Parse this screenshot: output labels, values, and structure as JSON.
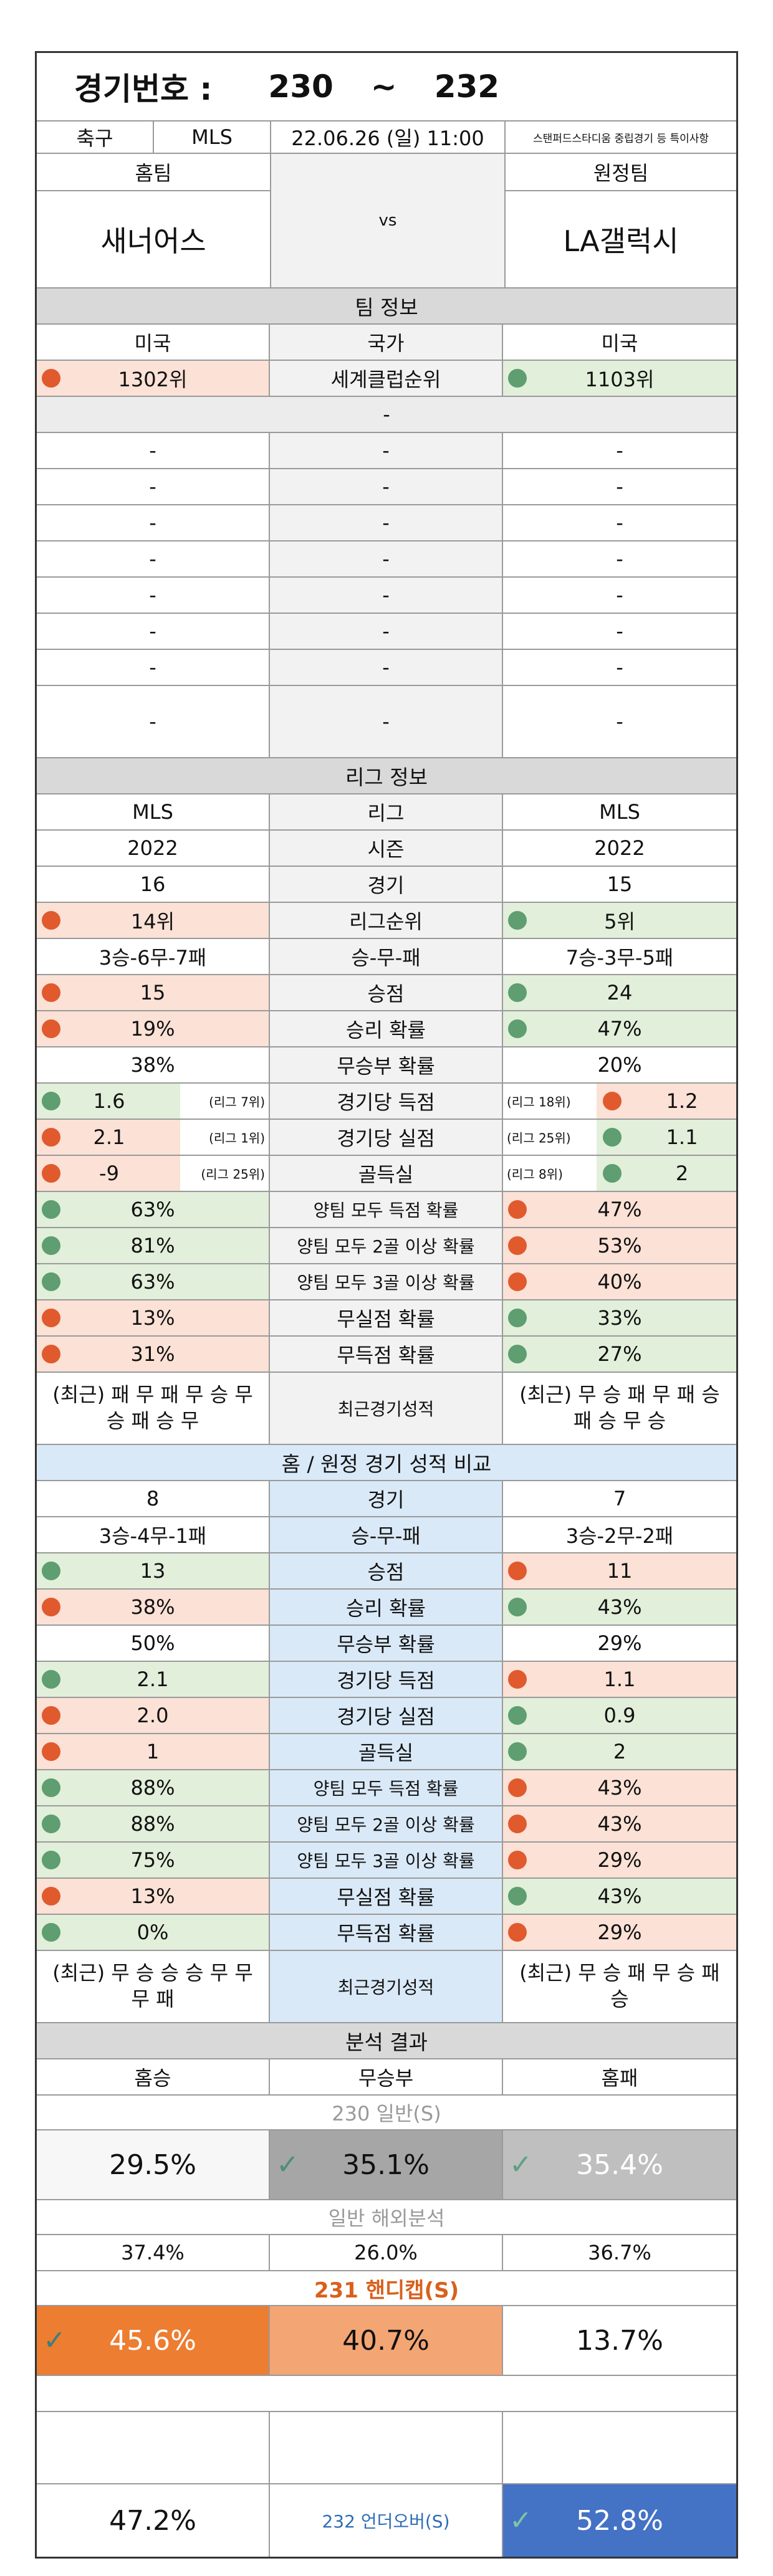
{
  "header": {
    "label": "경기번호 :",
    "from": "230",
    "tilde": "~",
    "to": "232"
  },
  "match": {
    "sport": "축구",
    "league": "MLS",
    "datetime": "22.06.26 (일) 11:00",
    "venue_note": "스탠퍼드스타디움 중립경기 등 특이사항",
    "home_label": "홈팀",
    "away_label": "원정팀",
    "home": "새너어스",
    "vs": "vs",
    "away": "LA갤럭시"
  },
  "team_info": {
    "title": "팀 정보",
    "country_label": "국가",
    "home_country": "미국",
    "away_country": "미국",
    "rank_label": "세계클럽순위",
    "home_rank": "1302위",
    "away_rank": "1103위",
    "dash": "-",
    "dash_rows": 8
  },
  "league_info": {
    "title": "리그 정보",
    "rows": [
      {
        "label": "리그",
        "home": "MLS",
        "away": "MLS"
      },
      {
        "label": "시즌",
        "home": "2022",
        "away": "2022"
      },
      {
        "label": "경기",
        "home": "16",
        "away": "15"
      },
      {
        "label": "리그순위",
        "home": "14위",
        "away": "5위",
        "hd": "r",
        "ad": "g"
      },
      {
        "label": "승-무-패",
        "home": "3승-6무-7패",
        "away": "7승-3무-5패"
      },
      {
        "label": "승점",
        "home": "15",
        "away": "24",
        "hd": "r",
        "ad": "g"
      },
      {
        "label": "승리 확률",
        "home": "19%",
        "away": "47%",
        "hd": "r",
        "ad": "g"
      },
      {
        "label": "무승부 확률",
        "home": "38%",
        "away": "20%"
      },
      {
        "label": "경기당 득점",
        "home": "1.6",
        "away": "1.2",
        "hd": "g",
        "ad": "r",
        "hnote": "(리그 7위)",
        "anote": "(리그 18위)"
      },
      {
        "label": "경기당 실점",
        "home": "2.1",
        "away": "1.1",
        "hd": "r",
        "ad": "g",
        "hnote": "(리그 1위)",
        "anote": "(리그 25위)"
      },
      {
        "label": "골득실",
        "home": "-9",
        "away": "2",
        "hd": "r",
        "ad": "g",
        "hnote": "(리그 25위)",
        "anote": "(리그 8위)"
      },
      {
        "label": "양팀 모두 득점 확률",
        "home": "63%",
        "away": "47%",
        "hd": "g",
        "ad": "r"
      },
      {
        "label": "양팀 모두 2골 이상 확률",
        "home": "81%",
        "away": "53%",
        "hd": "g",
        "ad": "r"
      },
      {
        "label": "양팀 모두 3골 이상 확률",
        "home": "63%",
        "away": "40%",
        "hd": "g",
        "ad": "r"
      },
      {
        "label": "무실점 확률",
        "home": "13%",
        "away": "33%",
        "hd": "r",
        "ad": "g"
      },
      {
        "label": "무득점 확률",
        "home": "31%",
        "away": "27%",
        "hd": "r",
        "ad": "g"
      }
    ],
    "recent_label": "최근경기성적",
    "home_recent": "(최근) 패 무 패 무 승 무 승 패 승 무",
    "away_recent": "(최근) 무 승 패 무 패 승 패 승 무 승"
  },
  "home_away": {
    "title": "홈 / 원정 경기 성적 비교",
    "rows": [
      {
        "label": "경기",
        "home": "8",
        "away": "7"
      },
      {
        "label": "승-무-패",
        "home": "3승-4무-1패",
        "away": "3승-2무-2패"
      },
      {
        "label": "승점",
        "home": "13",
        "away": "11",
        "hd": "g",
        "ad": "r"
      },
      {
        "label": "승리 확률",
        "home": "38%",
        "away": "43%",
        "hd": "r",
        "ad": "g"
      },
      {
        "label": "무승부 확률",
        "home": "50%",
        "away": "29%"
      },
      {
        "label": "경기당 득점",
        "home": "2.1",
        "away": "1.1",
        "hd": "g",
        "ad": "r"
      },
      {
        "label": "경기당 실점",
        "home": "2.0",
        "away": "0.9",
        "hd": "r",
        "ad": "g"
      },
      {
        "label": "골득실",
        "home": "1",
        "away": "2",
        "hd": "r",
        "ad": "g"
      },
      {
        "label": "양팀 모두 득점 확률",
        "home": "88%",
        "away": "43%",
        "hd": "g",
        "ad": "r"
      },
      {
        "label": "양팀 모두 2골 이상 확률",
        "home": "88%",
        "away": "43%",
        "hd": "g",
        "ad": "r"
      },
      {
        "label": "양팀 모두 3골 이상 확률",
        "home": "75%",
        "away": "29%",
        "hd": "g",
        "ad": "r"
      },
      {
        "label": "무실점 확률",
        "home": "13%",
        "away": "43%",
        "hd": "r",
        "ad": "g"
      },
      {
        "label": "무득점 확률",
        "home": "0%",
        "away": "29%",
        "hd": "g",
        "ad": "r"
      }
    ],
    "recent_label": "최근경기성적",
    "home_recent": "(최근) 무 승 승 승 무 무 무 패",
    "away_recent": "(최근) 무 승 패 무 승 패 승"
  },
  "analysis": {
    "title": "분석 결과",
    "col_home_win": "홈승",
    "col_draw": "무승부",
    "col_home_loss": "홈패",
    "g230_label": "230 일반(S)",
    "g230": {
      "home": "29.5%",
      "draw": "35.1%",
      "loss": "35.4%"
    },
    "overseas_label": "일반 해외분석",
    "overseas": {
      "home": "37.4%",
      "draw": "26.0%",
      "loss": "36.7%"
    },
    "g231_label": "231 핸디캡(S)",
    "g231": {
      "home": "45.6%",
      "draw": "40.7%",
      "loss": "13.7%"
    },
    "g232_label": "232 언더오버(S)",
    "g232": {
      "under": "47.2%",
      "over": "52.8%"
    },
    "colors": {
      "orange_dark": "#ed7d31",
      "orange_light": "#f4a574",
      "gray_mid": "#a6a6a6",
      "gray_light": "#bfbfbf",
      "blue": "#4472c4"
    }
  }
}
